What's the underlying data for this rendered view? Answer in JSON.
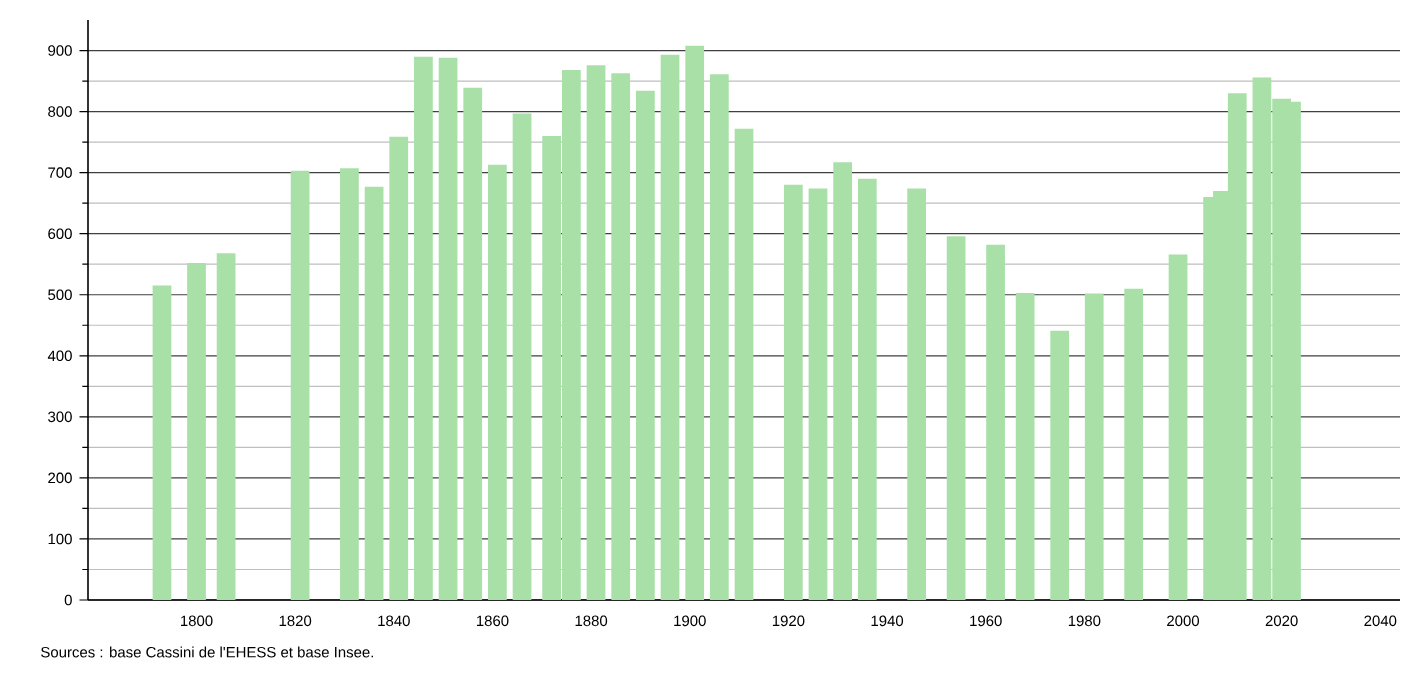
{
  "chart_data": {
    "type": "bar",
    "x": [
      1793,
      1800,
      1806,
      1821,
      1831,
      1836,
      1841,
      1846,
      1851,
      1856,
      1861,
      1866,
      1872,
      1876,
      1881,
      1886,
      1891,
      1896,
      1901,
      1906,
      1911,
      1921,
      1926,
      1931,
      1936,
      1946,
      1954,
      1962,
      1968,
      1975,
      1982,
      1990,
      1999,
      2006,
      2008,
      2011,
      2016,
      2020,
      2022
    ],
    "values": [
      515,
      552,
      568,
      703,
      707,
      677,
      759,
      890,
      888,
      839,
      713,
      797,
      760,
      868,
      876,
      863,
      834,
      893,
      908,
      861,
      772,
      680,
      674,
      717,
      690,
      674,
      596,
      582,
      503,
      441,
      502,
      510,
      566,
      660,
      670,
      830,
      856,
      821,
      816
    ],
    "color": "#a8e0a8",
    "xlim": [
      1778,
      2044
    ],
    "xticks": [
      1800,
      1820,
      1840,
      1860,
      1880,
      1900,
      1920,
      1940,
      1960,
      1980,
      2000,
      2020,
      2040
    ],
    "ylim": [
      0,
      950
    ],
    "yticks": [
      0,
      100,
      200,
      300,
      400,
      500,
      600,
      700,
      800,
      900
    ],
    "grid": "y",
    "annotations": [
      "Sources : base Cassini de l'EHESS et base Insee."
    ]
  }
}
